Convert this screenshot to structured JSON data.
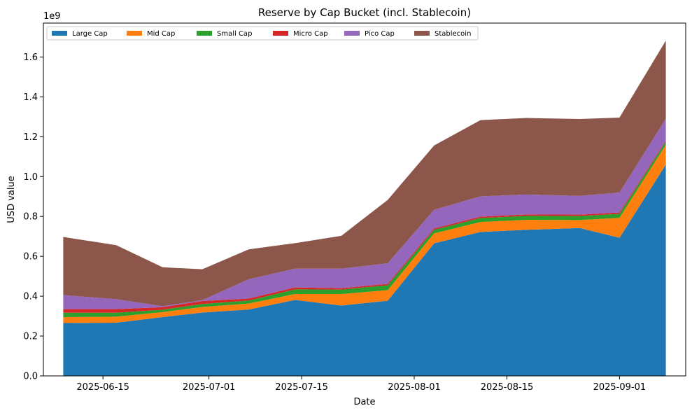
{
  "chart_data": {
    "type": "area",
    "stacked": true,
    "title": "Reserve by Cap Bucket (incl. Stablecoin)",
    "xlabel": "Date",
    "ylabel": "USD value",
    "y_offset_text": "1e9",
    "x": [
      "2025-06-09",
      "2025-06-17",
      "2025-06-24",
      "2025-06-30",
      "2025-07-07",
      "2025-07-14",
      "2025-07-21",
      "2025-07-28",
      "2025-08-04",
      "2025-08-11",
      "2025-08-18",
      "2025-08-26",
      "2025-09-01",
      "2025-09-08"
    ],
    "xlim": [
      "2025-06-06",
      "2025-09-11"
    ],
    "x_ticks": [
      {
        "date": "2025-06-15",
        "label": "2025-06-15"
      },
      {
        "date": "2025-07-01",
        "label": "2025-07-01"
      },
      {
        "date": "2025-07-15",
        "label": "2025-07-15"
      },
      {
        "date": "2025-08-01",
        "label": "2025-08-01"
      },
      {
        "date": "2025-08-15",
        "label": "2025-08-15"
      },
      {
        "date": "2025-09-01",
        "label": "2025-09-01"
      }
    ],
    "ylim": [
      0,
      1.77
    ],
    "y_ticks": [
      0.0,
      0.2,
      0.4,
      0.6,
      0.8,
      1.0,
      1.2,
      1.4,
      1.6
    ],
    "y_tick_labels": [
      "0.0",
      "0.2",
      "0.4",
      "0.6",
      "0.8",
      "1.0",
      "1.2",
      "1.4",
      "1.6"
    ],
    "series": [
      {
        "name": "Large Cap",
        "color": "#1f77b4",
        "values": [
          0.265,
          0.267,
          0.295,
          0.318,
          0.333,
          0.381,
          0.353,
          0.377,
          0.665,
          0.722,
          0.733,
          0.742,
          0.693,
          1.06
        ]
      },
      {
        "name": "Mid Cap",
        "color": "#ff7f0e",
        "values": [
          0.03,
          0.03,
          0.025,
          0.028,
          0.03,
          0.03,
          0.058,
          0.053,
          0.05,
          0.05,
          0.05,
          0.04,
          0.1,
          0.1
        ]
      },
      {
        "name": "Small Cap",
        "color": "#2ca02c",
        "values": [
          0.022,
          0.02,
          0.012,
          0.015,
          0.015,
          0.023,
          0.022,
          0.025,
          0.018,
          0.02,
          0.02,
          0.02,
          0.02,
          0.015
        ]
      },
      {
        "name": "Micro Cap",
        "color": "#d62728",
        "values": [
          0.018,
          0.018,
          0.013,
          0.015,
          0.01,
          0.01,
          0.007,
          0.007,
          0.007,
          0.007,
          0.007,
          0.007,
          0.007,
          0.005
        ]
      },
      {
        "name": "Pico Cap",
        "color": "#9467bd",
        "values": [
          0.07,
          0.05,
          0.005,
          0.004,
          0.097,
          0.094,
          0.098,
          0.103,
          0.093,
          0.102,
          0.1,
          0.094,
          0.1,
          0.11
        ]
      },
      {
        "name": "Stablecoin",
        "color": "#8c564b",
        "values": [
          0.292,
          0.271,
          0.195,
          0.155,
          0.15,
          0.128,
          0.165,
          0.318,
          0.323,
          0.382,
          0.384,
          0.386,
          0.376,
          0.392
        ]
      }
    ],
    "legend_position": "top-left",
    "grid": false
  }
}
